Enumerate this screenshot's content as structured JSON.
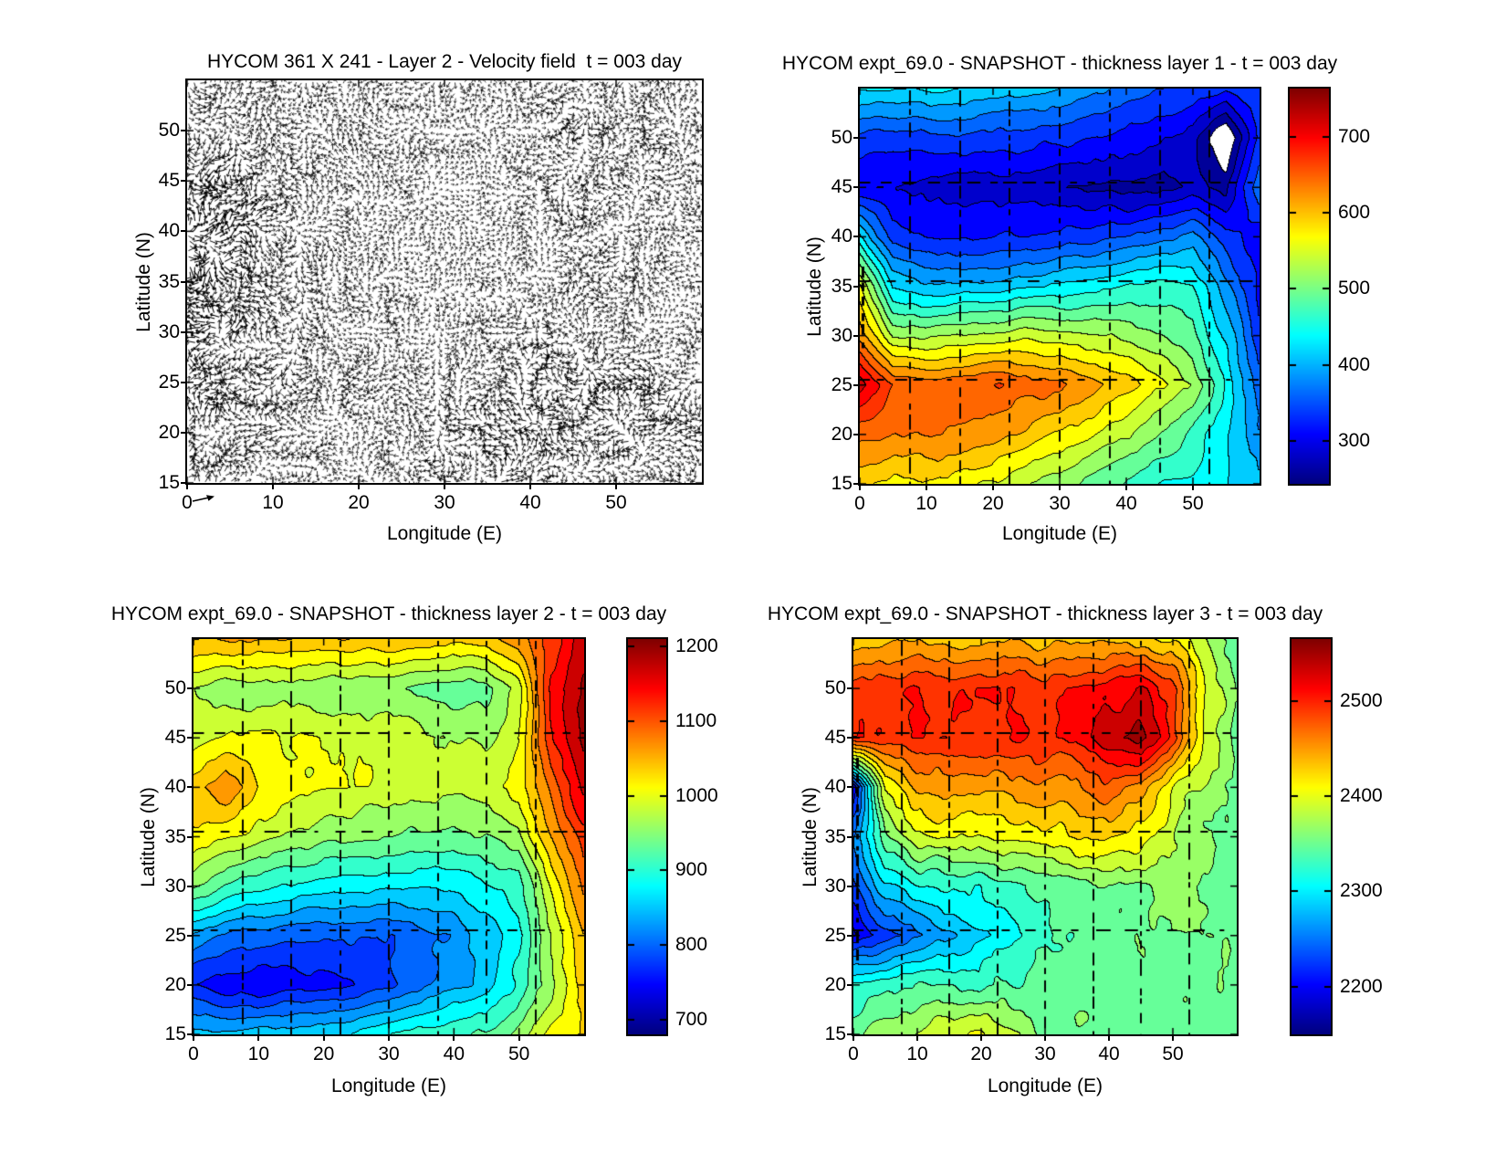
{
  "figure": {
    "background": "#ffffff",
    "text_color": "#000000",
    "contour_line_color": "#000000"
  },
  "chart_data": [
    {
      "id": "velocity-field",
      "type": "quiver",
      "title": "HYCOM 361 X 241 - Layer 2 - Velocity field  t = 003 day",
      "xlabel": "Longitude (E)",
      "ylabel": "Latitude (N)",
      "x_range": [
        0,
        60
      ],
      "y_range": [
        15,
        55
      ],
      "xticks": [
        0,
        10,
        20,
        30,
        40,
        50
      ],
      "yticks": [
        15,
        20,
        25,
        30,
        35,
        40,
        45,
        50
      ],
      "arrow_color": "#000000",
      "lons": [
        0,
        5,
        10,
        15,
        20,
        25,
        30,
        35,
        40,
        45,
        50,
        55,
        60
      ],
      "lats": [
        55,
        50,
        45,
        40,
        35,
        30,
        25,
        20,
        15
      ],
      "speed": [
        [
          0.55,
          0.5,
          0.48,
          0.5,
          0.46,
          0.42,
          0.5,
          0.46,
          0.5,
          0.56,
          0.52,
          0.46,
          0.5
        ],
        [
          0.7,
          0.62,
          0.52,
          0.46,
          0.5,
          0.46,
          0.42,
          0.46,
          0.5,
          0.56,
          0.6,
          0.52,
          0.46
        ],
        [
          0.95,
          0.82,
          0.62,
          0.5,
          0.46,
          0.42,
          0.4,
          0.42,
          0.46,
          0.5,
          0.56,
          0.5,
          0.46
        ],
        [
          1.0,
          0.92,
          0.62,
          0.46,
          0.42,
          0.36,
          0.36,
          0.4,
          0.42,
          0.46,
          0.5,
          0.46,
          0.42
        ],
        [
          1.0,
          0.88,
          0.56,
          0.5,
          0.46,
          0.4,
          0.36,
          0.4,
          0.42,
          0.46,
          0.5,
          0.46,
          0.42
        ],
        [
          0.95,
          0.82,
          0.62,
          0.56,
          0.5,
          0.42,
          0.42,
          0.46,
          0.5,
          0.56,
          0.52,
          0.46,
          0.42
        ],
        [
          0.8,
          0.72,
          0.62,
          0.56,
          0.5,
          0.46,
          0.52,
          0.56,
          0.66,
          0.72,
          0.66,
          0.6,
          0.5
        ],
        [
          0.72,
          0.62,
          0.56,
          0.5,
          0.46,
          0.52,
          0.56,
          0.66,
          0.76,
          0.72,
          0.66,
          0.6,
          0.56
        ],
        [
          0.6,
          0.56,
          0.5,
          0.46,
          0.46,
          0.52,
          0.56,
          0.62,
          0.66,
          0.62,
          0.56,
          0.5,
          0.46
        ]
      ]
    },
    {
      "id": "thickness-layer-1",
      "type": "contourf",
      "title": "HYCOM expt_69.0 - SNAPSHOT - thickness layer 1 - t = 003 day",
      "xlabel": "Longitude (E)",
      "ylabel": "Latitude (N)",
      "x_range": [
        0,
        60
      ],
      "y_range": [
        15,
        55
      ],
      "xticks": [
        0,
        10,
        20,
        30,
        40,
        50
      ],
      "yticks": [
        15,
        20,
        25,
        30,
        35,
        40,
        45,
        50
      ],
      "colormap": "jet",
      "n_levels": 20,
      "value_range": [
        244,
        763
      ],
      "colorbar_ticks": [
        300,
        400,
        500,
        600,
        700
      ],
      "noise_amp": 18,
      "allow_white_below_min": true,
      "grid_artifact_lons": [
        7.5,
        15,
        22.5,
        30,
        37.5,
        45,
        52.5
      ],
      "grid_artifact_lats": [
        25.5,
        35.5,
        45.5
      ],
      "edge_streaks": [
        {
          "lon": 0.4,
          "lat_min": 28,
          "lat_max": 37
        }
      ],
      "lons": [
        0,
        5,
        10,
        15,
        20,
        25,
        30,
        35,
        40,
        45,
        50,
        55,
        60
      ],
      "lats": [
        55,
        50,
        45,
        40,
        35,
        30,
        25,
        20,
        15
      ],
      "values": [
        [
          430,
          425,
          430,
          428,
          418,
          408,
          398,
          385,
          362,
          348,
          338,
          330,
          345
        ],
        [
          342,
          336,
          340,
          346,
          340,
          334,
          330,
          326,
          316,
          300,
          286,
          200,
          332
        ],
        [
          300,
          292,
          286,
          283,
          280,
          278,
          272,
          265,
          258,
          262,
          276,
          262,
          370
        ],
        [
          430,
          332,
          320,
          318,
          320,
          326,
          330,
          336,
          346,
          362,
          382,
          330,
          305
        ],
        [
          560,
          420,
          402,
          406,
          412,
          420,
          430,
          440,
          450,
          460,
          452,
          382,
          312
        ],
        [
          625,
          532,
          520,
          530,
          540,
          546,
          540,
          530,
          520,
          510,
          482,
          422,
          332
        ],
        [
          725,
          662,
          650,
          656,
          660,
          650,
          640,
          620,
          592,
          562,
          522,
          452,
          362
        ],
        [
          640,
          632,
          636,
          630,
          620,
          600,
          580,
          560,
          532,
          502,
          472,
          432,
          382
        ],
        [
          580,
          572,
          576,
          566,
          552,
          532,
          512,
          492,
          472,
          452,
          442,
          432,
          402
        ]
      ]
    },
    {
      "id": "thickness-layer-2",
      "type": "contourf",
      "title": "HYCOM expt_69.0 - SNAPSHOT - thickness layer 2 - t = 003 day",
      "xlabel": "Longitude (E)",
      "ylabel": "Latitude (N)",
      "x_range": [
        0,
        60
      ],
      "y_range": [
        15,
        55
      ],
      "xticks": [
        0,
        10,
        20,
        30,
        40,
        50
      ],
      "yticks": [
        15,
        20,
        25,
        30,
        35,
        40,
        45,
        50
      ],
      "colormap": "jet",
      "n_levels": 20,
      "value_range": [
        680,
        1210
      ],
      "colorbar_ticks": [
        700,
        800,
        900,
        1000,
        1100,
        1200
      ],
      "noise_amp": 18,
      "allow_white_below_min": false,
      "grid_artifact_lons": [
        7.5,
        15,
        22.5,
        30,
        37.5,
        45,
        52.5
      ],
      "grid_artifact_lats": [
        25.5,
        35.5,
        45.5
      ],
      "edge_streaks": [],
      "lons": [
        0,
        5,
        10,
        15,
        20,
        25,
        30,
        35,
        40,
        45,
        50,
        55,
        60
      ],
      "lats": [
        55,
        50,
        45,
        40,
        35,
        30,
        25,
        20,
        15
      ],
      "values": [
        [
          1052,
          1058,
          1055,
          1050,
          1046,
          1050,
          1046,
          1040,
          1036,
          1040,
          1062,
          1112,
          1172
        ],
        [
          972,
          958,
          952,
          956,
          950,
          946,
          950,
          940,
          926,
          936,
          982,
          1142,
          1192
        ],
        [
          986,
          1006,
          1004,
          1000,
          1000,
          996,
          990,
          980,
          966,
          962,
          996,
          1132,
          1190
        ],
        [
          1042,
          1076,
          1022,
          1006,
          1000,
          996,
          990,
          986,
          980,
          986,
          1006,
          1082,
          1162
        ],
        [
          1022,
          1002,
          986,
          970,
          956,
          950,
          946,
          940,
          936,
          946,
          966,
          1052,
          1122
        ],
        [
          952,
          922,
          902,
          890,
          880,
          876,
          870,
          866,
          870,
          886,
          906,
          1002,
          1082
        ],
        [
          832,
          812,
          800,
          795,
          790,
          786,
          790,
          800,
          820,
          850,
          886,
          972,
          1052
        ],
        [
          762,
          742,
          736,
          746,
          750,
          760,
          780,
          800,
          830,
          856,
          896,
          962,
          1042
        ],
        [
          850,
          846,
          850,
          856,
          860,
          870,
          890,
          906,
          916,
          926,
          956,
          1002,
          1032
        ]
      ]
    },
    {
      "id": "thickness-layer-3",
      "type": "contourf",
      "title": "HYCOM expt_69.0 - SNAPSHOT - thickness layer 3 - t = 003 day",
      "xlabel": "Longitude (E)",
      "ylabel": "Latitude (N)",
      "x_range": [
        0,
        60
      ],
      "y_range": [
        15,
        55
      ],
      "xticks": [
        0,
        10,
        20,
        30,
        40,
        50
      ],
      "yticks": [
        15,
        20,
        25,
        30,
        35,
        40,
        45,
        50
      ],
      "colormap": "jet",
      "n_levels": 20,
      "value_range": [
        2150,
        2565
      ],
      "colorbar_ticks": [
        2200,
        2300,
        2400,
        2500
      ],
      "noise_amp": 24,
      "allow_white_below_min": false,
      "grid_artifact_lons": [
        7.5,
        15,
        22.5,
        30,
        37.5,
        45,
        52.5
      ],
      "grid_artifact_lats": [
        25.5,
        35.5,
        45.5
      ],
      "edge_streaks": [
        {
          "lon": 0.6,
          "lat_min": 22,
          "lat_max": 43
        }
      ],
      "lons": [
        0,
        5,
        10,
        15,
        20,
        25,
        30,
        35,
        40,
        45,
        50,
        55,
        60
      ],
      "lats": [
        55,
        50,
        45,
        40,
        35,
        30,
        25,
        20,
        15
      ],
      "values": [
        [
          2420,
          2432,
          2436,
          2430,
          2432,
          2436,
          2430,
          2436,
          2430,
          2426,
          2420,
          2380,
          2352
        ],
        [
          2492,
          2500,
          2500,
          2496,
          2500,
          2500,
          2496,
          2500,
          2512,
          2522,
          2492,
          2402,
          2352
        ],
        [
          2498,
          2496,
          2500,
          2500,
          2496,
          2500,
          2500,
          2506,
          2540,
          2560,
          2500,
          2402,
          2352
        ],
        [
          2200,
          2402,
          2450,
          2450,
          2446,
          2450,
          2450,
          2456,
          2482,
          2452,
          2402,
          2372,
          2352
        ],
        [
          2252,
          2352,
          2392,
          2400,
          2402,
          2406,
          2410,
          2420,
          2420,
          2402,
          2382,
          2362,
          2352
        ],
        [
          2232,
          2292,
          2312,
          2320,
          2322,
          2330,
          2340,
          2350,
          2352,
          2360,
          2360,
          2352,
          2350
        ],
        [
          2192,
          2222,
          2248,
          2268,
          2288,
          2308,
          2328,
          2340,
          2350,
          2352,
          2354,
          2350,
          2350
        ],
        [
          2322,
          2330,
          2332,
          2340,
          2330,
          2340,
          2350,
          2350,
          2346,
          2350,
          2350,
          2350,
          2350
        ],
        [
          2352,
          2372,
          2382,
          2392,
          2400,
          2382,
          2362,
          2352,
          2350,
          2350,
          2350,
          2350,
          2350
        ]
      ]
    }
  ]
}
